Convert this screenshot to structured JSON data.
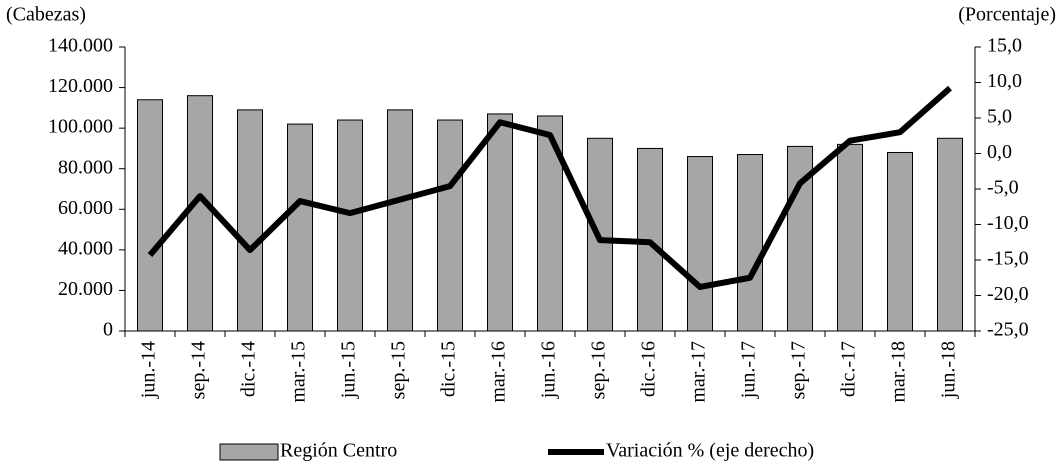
{
  "chart_data": {
    "type": "bar_line",
    "y_label": "(Cabezas)",
    "y2_label": "(Porcentaje)",
    "categories": [
      "jun.-14",
      "sep.-14",
      "dic.-14",
      "mar.-15",
      "jun.-15",
      "sep.-15",
      "dic.-15",
      "mar.-16",
      "jun.-16",
      "sep.-16",
      "dic.-16",
      "mar.-17",
      "jun.-17",
      "sep.-17",
      "dic.-17",
      "mar.-18",
      "jun.-18"
    ],
    "series": [
      {
        "name": "Región Centro",
        "type": "bar",
        "color": "#a6a6a6",
        "values": [
          114000,
          116000,
          109000,
          102000,
          104000,
          109000,
          104000,
          107000,
          106000,
          95000,
          90000,
          86000,
          87000,
          91000,
          92000,
          88000,
          95000
        ]
      },
      {
        "name": "Variación % (eje derecho)",
        "type": "line",
        "axis": "y2",
        "color": "#000000",
        "values": [
          -14.3,
          -6.0,
          -13.6,
          -6.7,
          -8.4,
          -6.5,
          -4.6,
          4.4,
          2.6,
          -12.2,
          -12.5,
          -18.8,
          -17.5,
          -4.2,
          1.8,
          3.0,
          9.2
        ]
      }
    ],
    "ylim": [
      0,
      140000
    ],
    "yticks": [
      0,
      {
        "value": 20000,
        "label": "20.000"
      },
      {
        "value": 40000,
        "label": "40.000"
      },
      {
        "value": 60000,
        "label": "60.000"
      },
      {
        "value": 80000,
        "label": "80.000"
      },
      {
        "value": 100000,
        "label": "100.000"
      },
      {
        "value": 120000,
        "label": "120.000"
      },
      {
        "value": 140000,
        "label": "140.000"
      }
    ],
    "y2lim": [
      -25,
      15
    ],
    "y2ticks": [
      {
        "value": -25,
        "label": "-25,0"
      },
      {
        "value": -20,
        "label": "-20,0"
      },
      {
        "value": -15,
        "label": "-15,0"
      },
      {
        "value": -10,
        "label": "-10,0"
      },
      {
        "value": -5,
        "label": "-5,0"
      },
      {
        "value": 0,
        "label": "0,0"
      },
      {
        "value": 5,
        "label": "5,0"
      },
      {
        "value": 10,
        "label": "10,0"
      },
      {
        "value": 15,
        "label": "15,0"
      }
    ],
    "grid": false,
    "legend": "bottom"
  }
}
